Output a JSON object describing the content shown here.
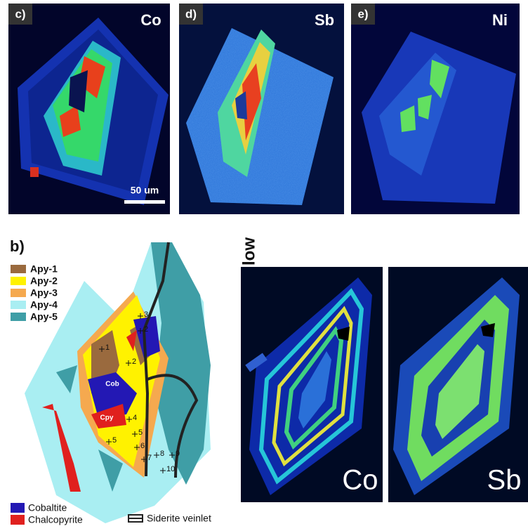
{
  "panels": [
    {
      "label": "c)",
      "element": "Co"
    },
    {
      "label": "d)",
      "element": "Sb"
    },
    {
      "label": "e)",
      "element": "Ni"
    }
  ],
  "scale_bar": "50 um",
  "map": {
    "label": "b)",
    "legend": [
      {
        "name": "Apy-1",
        "color": "#9a6a3e"
      },
      {
        "name": "Apy-2",
        "color": "#fff200"
      },
      {
        "name": "Apy-3",
        "color": "#f5a94f"
      },
      {
        "name": "Apy-4",
        "color": "#a9eef2"
      },
      {
        "name": "Apy-5",
        "color": "#3f9ea6"
      }
    ],
    "minerals": [
      {
        "name": "Cobaltite",
        "color": "#2318b4"
      },
      {
        "name": "Chalcopyrite",
        "color": "#e0201e"
      }
    ],
    "veinlet": "Siderite veinlet",
    "annotations": [
      "Cob",
      "Cpy"
    ],
    "points": [
      "3",
      "2",
      "1",
      "2",
      "4",
      "5",
      "5",
      "6",
      "7",
      "8",
      "9",
      "10"
    ]
  },
  "intensity_label": "low",
  "zoned_maps": [
    "Co",
    "Sb"
  ]
}
